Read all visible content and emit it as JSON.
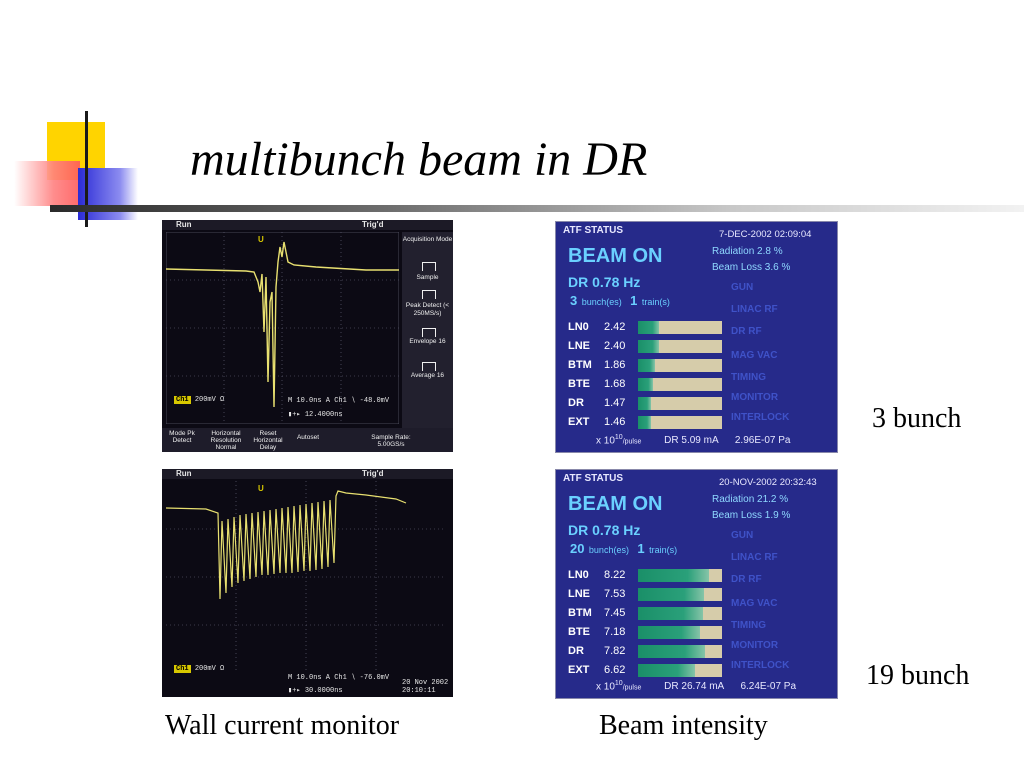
{
  "slide": {
    "title": "multibunch beam in DR",
    "labels": {
      "three": "3 bunch",
      "nineteen": "19 bunch"
    },
    "captions": {
      "left": "Wall current monitor",
      "right": "Beam intensity"
    }
  },
  "colors": {
    "title_text": "#000000",
    "scope_trace": "#e8e070",
    "atf_background": "#262a8a",
    "beam_on": "#6ad0ff",
    "bar_fill": "#1a8f68",
    "bar_empty": "#d6ccaa"
  },
  "scopes": [
    {
      "run": "Run",
      "trig": "Trig'd",
      "ch1": "Ch1",
      "scale": "200mV Ω",
      "horizontal": "M 10.0ns  A  Ch1  ∖ -48.0mV",
      "cursor": "▮+▸ 12.4000ns",
      "menu": [
        "Acquisition Mode",
        "Sample",
        "Peak Detect (< 250MS/s)",
        "Envelope 16",
        "Average 16"
      ],
      "bottom": [
        "Mode Pk Detect",
        "Horizontal Resolution Normal",
        "Reset Horizontal Delay",
        "Autoset",
        "Sample Rate: 5.00GS/s"
      ]
    },
    {
      "run": "Run",
      "trig": "Trig'd",
      "ch1": "Ch1",
      "scale": "200mV Ω",
      "horizontal": "M 10.0ns  A  Ch1  ∖ -76.0mV",
      "cursor": "▮+▸ 30.0000ns",
      "datetime": "20 Nov 2002 20:10:11"
    }
  ],
  "atf": [
    {
      "header": "ATF STATUS",
      "date": "7-DEC-2002 02:09:04",
      "beam": "BEAM ON",
      "radiation": "Radiation   2.8 %",
      "beamloss": "Beam Loss   3.6 %",
      "dr": "DR   0.78 Hz",
      "bunches": "3",
      "bunch_unit": "bunch(es)",
      "trains": "1",
      "train_unit": "train(s)",
      "ghost": [
        "GUN",
        "LINAC RF",
        "DR RF",
        "MAG  VAC",
        "TIMING",
        "MONITOR",
        "INTERLOCK"
      ],
      "rows": [
        {
          "name": "LN0",
          "value": "2.42",
          "fill": 0.25
        },
        {
          "name": "LNE",
          "value": "2.40",
          "fill": 0.25
        },
        {
          "name": "BTM",
          "value": "1.86",
          "fill": 0.2
        },
        {
          "name": "BTE",
          "value": "1.68",
          "fill": 0.18
        },
        {
          "name": "DR",
          "value": "1.47",
          "fill": 0.16
        },
        {
          "name": "EXT",
          "value": "1.46",
          "fill": 0.16
        }
      ],
      "foot_unit_a": "x 10",
      "foot_exp": "10",
      "foot_unit_b": "/pulse",
      "foot_dr": "DR   5.09 mA",
      "foot_pa": "2.96E-07 Pa"
    },
    {
      "header": "ATF STATUS",
      "date": "20-NOV-2002 20:32:43",
      "beam": "BEAM ON",
      "radiation": "Radiation  21.2 %",
      "beamloss": "Beam Loss   1.9 %",
      "dr": "DR   0.78 Hz",
      "bunches": "20",
      "bunch_unit": "bunch(es)",
      "trains": "1",
      "train_unit": "train(s)",
      "ghost": [
        "GUN",
        "LINAC RF",
        "DR RF",
        "MAG  VAC",
        "TIMING",
        "MONITOR",
        "INTERLOCK"
      ],
      "rows": [
        {
          "name": "LN0",
          "value": "8.22",
          "fill": 0.85
        },
        {
          "name": "LNE",
          "value": "7.53",
          "fill": 0.78
        },
        {
          "name": "BTM",
          "value": "7.45",
          "fill": 0.77
        },
        {
          "name": "BTE",
          "value": "7.18",
          "fill": 0.74
        },
        {
          "name": "DR",
          "value": "7.82",
          "fill": 0.8
        },
        {
          "name": "EXT",
          "value": "6.62",
          "fill": 0.68
        }
      ],
      "foot_unit_a": "x 10",
      "foot_exp": "10",
      "foot_unit_b": "/pulse",
      "foot_dr": "DR  26.74 mA",
      "foot_pa": "6.24E-07 Pa"
    }
  ]
}
